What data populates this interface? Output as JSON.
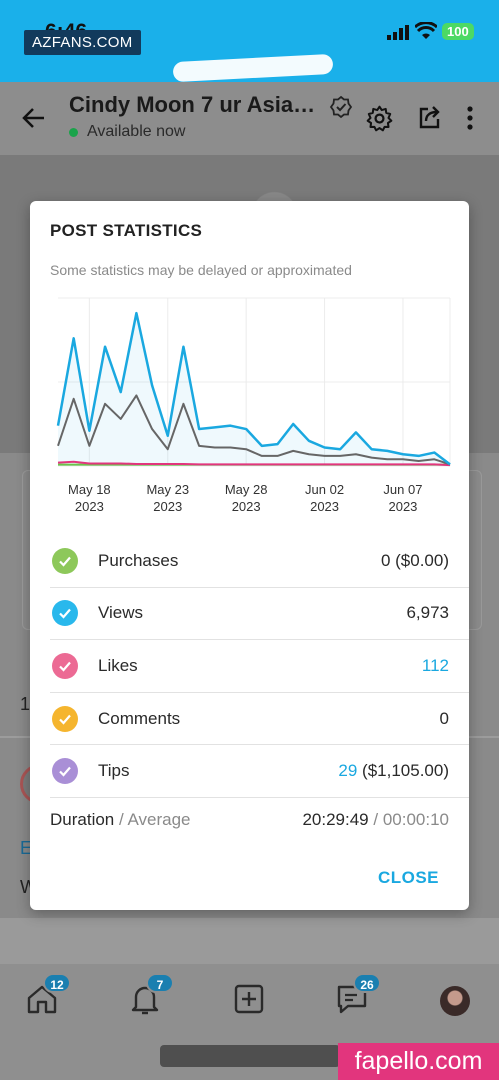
{
  "status_bar": {
    "time": "6:46",
    "battery": "100",
    "watermark": "AZFANS.COM"
  },
  "header": {
    "title": "Cindy Moon 7 ur Asia…",
    "presence": "Available now"
  },
  "background": {
    "fragments": [
      "1",
      "E",
      "W"
    ]
  },
  "bottom_nav": {
    "home_badge": "12",
    "notifications_badge": "7",
    "messages_badge": "26"
  },
  "watermark_bottom": "fapello.com",
  "modal": {
    "title": "POST STATISTICS",
    "subtitle": "Some statistics may be delayed or approximated",
    "stats": [
      {
        "label": "Purchases",
        "value": "0 ($0.00)",
        "color": "#8dc85a"
      },
      {
        "label": "Views",
        "value": "6,973",
        "color": "#29b8ec"
      },
      {
        "label": "Likes",
        "value": "112",
        "color": "#ec6a94"
      },
      {
        "label": "Comments",
        "value": "0",
        "color": "#f5b52e"
      },
      {
        "label": "Tips",
        "value_highlight": "29",
        "value_rest": " ($1,105.00)",
        "color": "#a98fd6"
      }
    ],
    "duration_label": "Duration",
    "average_label": "Average",
    "duration_sep": " / ",
    "duration_value": "20:29:49",
    "average_value": "00:00:10",
    "close_label": "CLOSE"
  },
  "chart_data": {
    "type": "line",
    "x_tick_labels": [
      [
        "May 18",
        "2023"
      ],
      [
        "May 23",
        "2023"
      ],
      [
        "May 28",
        "2023"
      ],
      [
        "Jun 02",
        "2023"
      ],
      [
        "Jun 07",
        "2023"
      ]
    ],
    "x": [
      "May 16",
      "May 17",
      "May 18",
      "May 19",
      "May 20",
      "May 21",
      "May 22",
      "May 23",
      "May 24",
      "May 25",
      "May 26",
      "May 27",
      "May 28",
      "May 29",
      "May 30",
      "May 31",
      "Jun 01",
      "Jun 02",
      "Jun 03",
      "Jun 04",
      "Jun 05",
      "Jun 06",
      "Jun 07",
      "Jun 08",
      "Jun 09",
      "Jun 10"
    ],
    "ylim": [
      0,
      100
    ],
    "series": [
      {
        "color": "#1aa8e0",
        "values": [
          24,
          76,
          21,
          71,
          44,
          91,
          48,
          18,
          71,
          22,
          23,
          24,
          22,
          12,
          13,
          25,
          15,
          11,
          10,
          20,
          10,
          9,
          7,
          6,
          8,
          1
        ]
      },
      {
        "color": "#666666",
        "values": [
          12,
          40,
          12,
          37,
          28,
          42,
          22,
          10,
          37,
          12,
          11,
          11,
          10,
          6,
          6,
          9,
          7,
          6,
          6,
          7,
          5,
          4,
          4,
          3,
          4,
          1
        ]
      },
      {
        "color": "#e2357d",
        "values": [
          2,
          2.5,
          1.5,
          1.5,
          1.5,
          1.2,
          1.2,
          1.2,
          1.2,
          1,
          1,
          1,
          1,
          1,
          1,
          1,
          1,
          1,
          1,
          1,
          1,
          1,
          1,
          1,
          1,
          0.5
        ]
      },
      {
        "color": "#6cc24a",
        "values": [
          0.8,
          0.8,
          0.8,
          0.8,
          0.8,
          0.8,
          0.8,
          0.8,
          0.8,
          0.8,
          0.8,
          0.8,
          0.8,
          0.8,
          0.8,
          0.8,
          0.8,
          0.8,
          0.8,
          0.8,
          0.8,
          0.8,
          0.8,
          0.8,
          0.8,
          0.8
        ]
      }
    ],
    "grid": true
  }
}
